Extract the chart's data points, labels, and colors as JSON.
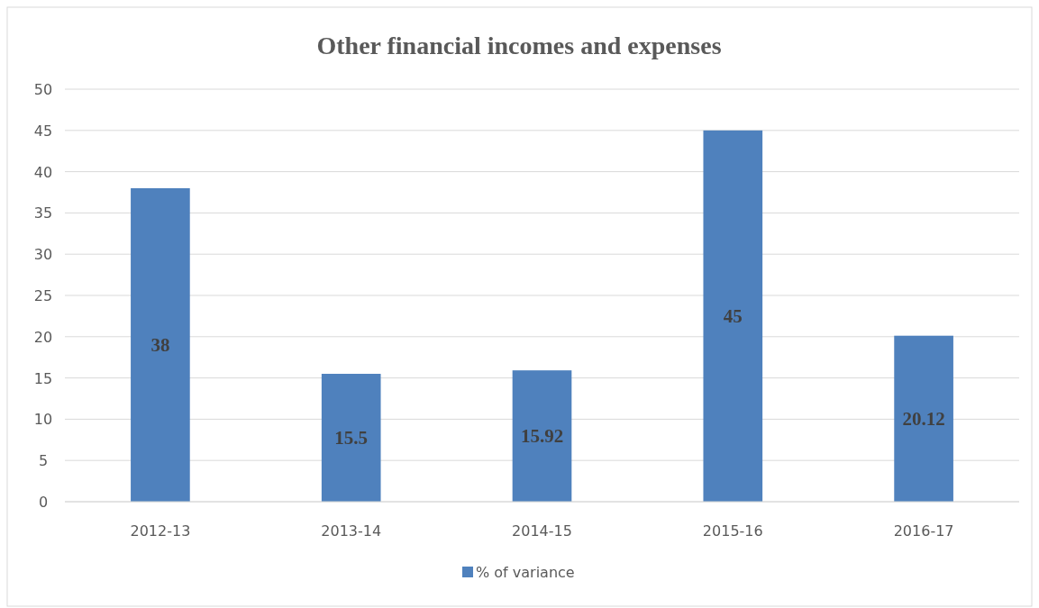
{
  "chart_data": {
    "type": "bar",
    "title": "Other financial incomes and expenses",
    "categories": [
      "2012-13",
      "2013-14",
      "2014-15",
      "2015-16",
      "2016-17"
    ],
    "series": [
      {
        "name": "% of variance",
        "color": "#4f81bd",
        "values": [
          38,
          15.5,
          15.92,
          45,
          20.12
        ]
      }
    ],
    "ylim": [
      0,
      50
    ],
    "yticks": [
      0,
      5,
      10,
      15,
      20,
      25,
      30,
      35,
      40,
      45,
      50
    ],
    "grid": "y",
    "legend": "bottom",
    "data_labels": true
  }
}
